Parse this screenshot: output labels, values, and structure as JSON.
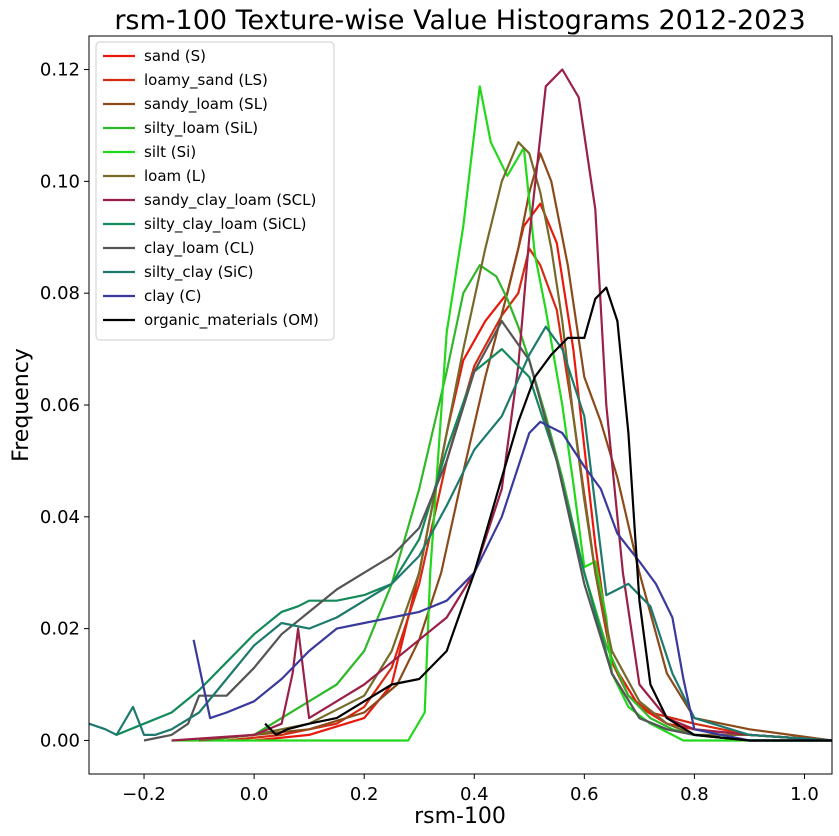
{
  "chart_data": {
    "type": "line",
    "title": "rsm-100 Texture-wise Value Histograms 2012-2023",
    "xlabel": "rsm-100",
    "ylabel": "Frequency",
    "xlim": [
      -0.3,
      1.05
    ],
    "ylim": [
      -0.006,
      0.126
    ],
    "xticks": [
      -0.2,
      0.0,
      0.2,
      0.4,
      0.6,
      0.8,
      1.0
    ],
    "xtick_labels": [
      "−0.2",
      "0.0",
      "0.2",
      "0.4",
      "0.6",
      "0.8",
      "1.0"
    ],
    "yticks": [
      0.0,
      0.02,
      0.04,
      0.06,
      0.08,
      0.1,
      0.12
    ],
    "ytick_labels": [
      "0.00",
      "0.02",
      "0.04",
      "0.06",
      "0.08",
      "0.10",
      "0.12"
    ],
    "grid": false,
    "legend_position": "upper-left",
    "series": [
      {
        "name": "sand (S)",
        "color": "#e8190c",
        "x": [
          0.0,
          0.1,
          0.2,
          0.25,
          0.3,
          0.35,
          0.38,
          0.42,
          0.46,
          0.49,
          0.52,
          0.55,
          0.58,
          0.62,
          0.65,
          0.7,
          0.75,
          0.8,
          0.9,
          1.05
        ],
        "y": [
          0.0,
          0.001,
          0.004,
          0.01,
          0.03,
          0.055,
          0.068,
          0.075,
          0.08,
          0.092,
          0.096,
          0.089,
          0.07,
          0.035,
          0.014,
          0.006,
          0.003,
          0.002,
          0.001,
          0.0
        ]
      },
      {
        "name": "loamy_sand (LS)",
        "color": "#d62b12",
        "x": [
          -0.05,
          0.05,
          0.1,
          0.15,
          0.2,
          0.25,
          0.3,
          0.35,
          0.4,
          0.45,
          0.48,
          0.5,
          0.52,
          0.55,
          0.58,
          0.62,
          0.65,
          0.68,
          0.72,
          0.8,
          0.9,
          1.05
        ],
        "y": [
          0.0,
          0.001,
          0.002,
          0.003,
          0.006,
          0.013,
          0.028,
          0.05,
          0.067,
          0.076,
          0.08,
          0.088,
          0.085,
          0.077,
          0.058,
          0.03,
          0.014,
          0.008,
          0.005,
          0.003,
          0.001,
          0.0
        ]
      },
      {
        "name": "sandy_loam (SL)",
        "color": "#8c4a1a",
        "x": [
          -0.1,
          0.0,
          0.1,
          0.2,
          0.26,
          0.3,
          0.34,
          0.38,
          0.42,
          0.46,
          0.48,
          0.5,
          0.52,
          0.54,
          0.57,
          0.6,
          0.63,
          0.66,
          0.7,
          0.75,
          0.8,
          0.9,
          1.05
        ],
        "y": [
          0.0,
          0.001,
          0.002,
          0.005,
          0.01,
          0.018,
          0.03,
          0.048,
          0.065,
          0.08,
          0.088,
          0.098,
          0.105,
          0.1,
          0.085,
          0.065,
          0.057,
          0.047,
          0.03,
          0.012,
          0.004,
          0.002,
          0.0
        ]
      },
      {
        "name": "silty_loam (SiL)",
        "color": "#2fb82a",
        "x": [
          -0.1,
          0.0,
          0.05,
          0.1,
          0.15,
          0.2,
          0.25,
          0.3,
          0.35,
          0.38,
          0.41,
          0.44,
          0.46,
          0.48,
          0.5,
          0.53,
          0.56,
          0.6,
          0.64,
          0.68,
          0.72,
          0.76,
          0.8,
          0.9,
          1.05
        ],
        "y": [
          0.0,
          0.001,
          0.004,
          0.007,
          0.01,
          0.016,
          0.028,
          0.045,
          0.066,
          0.08,
          0.085,
          0.083,
          0.079,
          0.074,
          0.068,
          0.058,
          0.047,
          0.03,
          0.017,
          0.008,
          0.004,
          0.002,
          0.001,
          0.0,
          0.0
        ]
      },
      {
        "name": "silt (Si)",
        "color": "#22d81a",
        "x": [
          -0.15,
          -0.05,
          0.1,
          0.2,
          0.28,
          0.31,
          0.32,
          0.35,
          0.38,
          0.41,
          0.43,
          0.46,
          0.49,
          0.51,
          0.53,
          0.56,
          0.58,
          0.6,
          0.62,
          0.64,
          0.65,
          0.68,
          0.72,
          0.78,
          0.85,
          1.05
        ],
        "y": [
          0.0,
          0.0,
          0.0,
          0.0,
          0.0,
          0.005,
          0.03,
          0.073,
          0.092,
          0.117,
          0.107,
          0.101,
          0.106,
          0.087,
          0.077,
          0.06,
          0.046,
          0.031,
          0.032,
          0.022,
          0.012,
          0.006,
          0.003,
          0.0,
          0.0,
          0.0
        ]
      },
      {
        "name": "loam (L)",
        "color": "#756a2a",
        "x": [
          -0.1,
          0.0,
          0.1,
          0.2,
          0.25,
          0.3,
          0.34,
          0.38,
          0.42,
          0.45,
          0.48,
          0.5,
          0.52,
          0.54,
          0.56,
          0.58,
          0.6,
          0.62,
          0.65,
          0.7,
          0.75,
          0.8,
          0.9,
          1.05
        ],
        "y": [
          0.0,
          0.001,
          0.003,
          0.008,
          0.016,
          0.03,
          0.05,
          0.07,
          0.088,
          0.1,
          0.107,
          0.105,
          0.098,
          0.088,
          0.075,
          0.058,
          0.043,
          0.03,
          0.016,
          0.007,
          0.003,
          0.001,
          0.001,
          0.0
        ]
      },
      {
        "name": "sandy_clay_loam (SCL)",
        "color": "#9b2047",
        "x": [
          -0.15,
          0.0,
          0.05,
          0.07,
          0.08,
          0.1,
          0.15,
          0.2,
          0.25,
          0.3,
          0.35,
          0.4,
          0.45,
          0.48,
          0.5,
          0.53,
          0.56,
          0.59,
          0.62,
          0.64,
          0.67,
          0.7,
          0.75,
          0.8,
          0.9,
          1.05
        ],
        "y": [
          0.0,
          0.001,
          0.003,
          0.012,
          0.02,
          0.004,
          0.007,
          0.01,
          0.014,
          0.018,
          0.022,
          0.03,
          0.045,
          0.067,
          0.09,
          0.117,
          0.12,
          0.115,
          0.095,
          0.06,
          0.03,
          0.01,
          0.004,
          0.002,
          0.001,
          0.0
        ]
      },
      {
        "name": "silty_clay_loam (SiCL)",
        "color": "#14895a",
        "x": [
          -0.25,
          -0.2,
          -0.15,
          -0.1,
          -0.05,
          0.0,
          0.05,
          0.08,
          0.1,
          0.15,
          0.2,
          0.25,
          0.3,
          0.35,
          0.4,
          0.45,
          0.5,
          0.55,
          0.6,
          0.65,
          0.7,
          0.75,
          0.8,
          0.9,
          1.05
        ],
        "y": [
          0.001,
          0.003,
          0.005,
          0.009,
          0.014,
          0.019,
          0.023,
          0.024,
          0.025,
          0.025,
          0.026,
          0.028,
          0.036,
          0.052,
          0.066,
          0.07,
          0.065,
          0.05,
          0.03,
          0.012,
          0.004,
          0.002,
          0.001,
          0.0,
          0.0
        ]
      },
      {
        "name": "clay_loam (CL)",
        "color": "#555555",
        "x": [
          -0.2,
          -0.15,
          -0.12,
          -0.1,
          -0.05,
          0.0,
          0.05,
          0.1,
          0.15,
          0.2,
          0.25,
          0.3,
          0.35,
          0.4,
          0.45,
          0.5,
          0.55,
          0.6,
          0.65,
          0.7,
          0.75,
          0.8,
          0.9,
          1.05
        ],
        "y": [
          0.0,
          0.001,
          0.003,
          0.008,
          0.008,
          0.013,
          0.019,
          0.023,
          0.027,
          0.03,
          0.033,
          0.038,
          0.05,
          0.066,
          0.075,
          0.068,
          0.05,
          0.028,
          0.012,
          0.004,
          0.002,
          0.001,
          0.0,
          0.0
        ]
      },
      {
        "name": "silty_clay (SiC)",
        "color": "#1f7a6e",
        "x": [
          -0.3,
          -0.27,
          -0.25,
          -0.22,
          -0.2,
          -0.18,
          -0.15,
          -0.1,
          -0.05,
          0.0,
          0.05,
          0.1,
          0.15,
          0.2,
          0.25,
          0.3,
          0.35,
          0.4,
          0.45,
          0.5,
          0.53,
          0.56,
          0.6,
          0.64,
          0.68,
          0.72,
          0.76,
          0.8,
          0.9,
          1.05
        ],
        "y": [
          0.003,
          0.002,
          0.001,
          0.006,
          0.001,
          0.001,
          0.002,
          0.005,
          0.011,
          0.017,
          0.021,
          0.02,
          0.022,
          0.025,
          0.028,
          0.033,
          0.042,
          0.052,
          0.058,
          0.069,
          0.074,
          0.07,
          0.058,
          0.026,
          0.028,
          0.024,
          0.012,
          0.004,
          0.001,
          0.0
        ]
      },
      {
        "name": "clay (C)",
        "color": "#3a3a9c",
        "x": [
          -0.11,
          -0.08,
          -0.05,
          0.0,
          0.05,
          0.1,
          0.15,
          0.2,
          0.25,
          0.3,
          0.35,
          0.4,
          0.45,
          0.5,
          0.52,
          0.56,
          0.6,
          0.63,
          0.66,
          0.7,
          0.73,
          0.76,
          0.78,
          0.8,
          0.85,
          0.9,
          1.05
        ],
        "y": [
          0.018,
          0.004,
          0.005,
          0.007,
          0.011,
          0.016,
          0.02,
          0.021,
          0.022,
          0.023,
          0.025,
          0.03,
          0.04,
          0.055,
          0.057,
          0.055,
          0.049,
          0.045,
          0.037,
          0.032,
          0.028,
          0.022,
          0.011,
          0.002,
          0.001,
          0.0,
          0.0
        ]
      },
      {
        "name": "organic_materials (OM)",
        "color": "#000000",
        "x": [
          0.02,
          0.04,
          0.06,
          0.1,
          0.15,
          0.2,
          0.25,
          0.3,
          0.35,
          0.4,
          0.45,
          0.48,
          0.51,
          0.54,
          0.57,
          0.6,
          0.62,
          0.64,
          0.66,
          0.68,
          0.7,
          0.72,
          0.75,
          0.8,
          0.9,
          1.05
        ],
        "y": [
          0.003,
          0.001,
          0.002,
          0.003,
          0.004,
          0.007,
          0.01,
          0.011,
          0.016,
          0.03,
          0.047,
          0.057,
          0.065,
          0.069,
          0.072,
          0.072,
          0.079,
          0.081,
          0.075,
          0.055,
          0.025,
          0.01,
          0.004,
          0.001,
          0.0,
          0.0
        ]
      }
    ]
  }
}
